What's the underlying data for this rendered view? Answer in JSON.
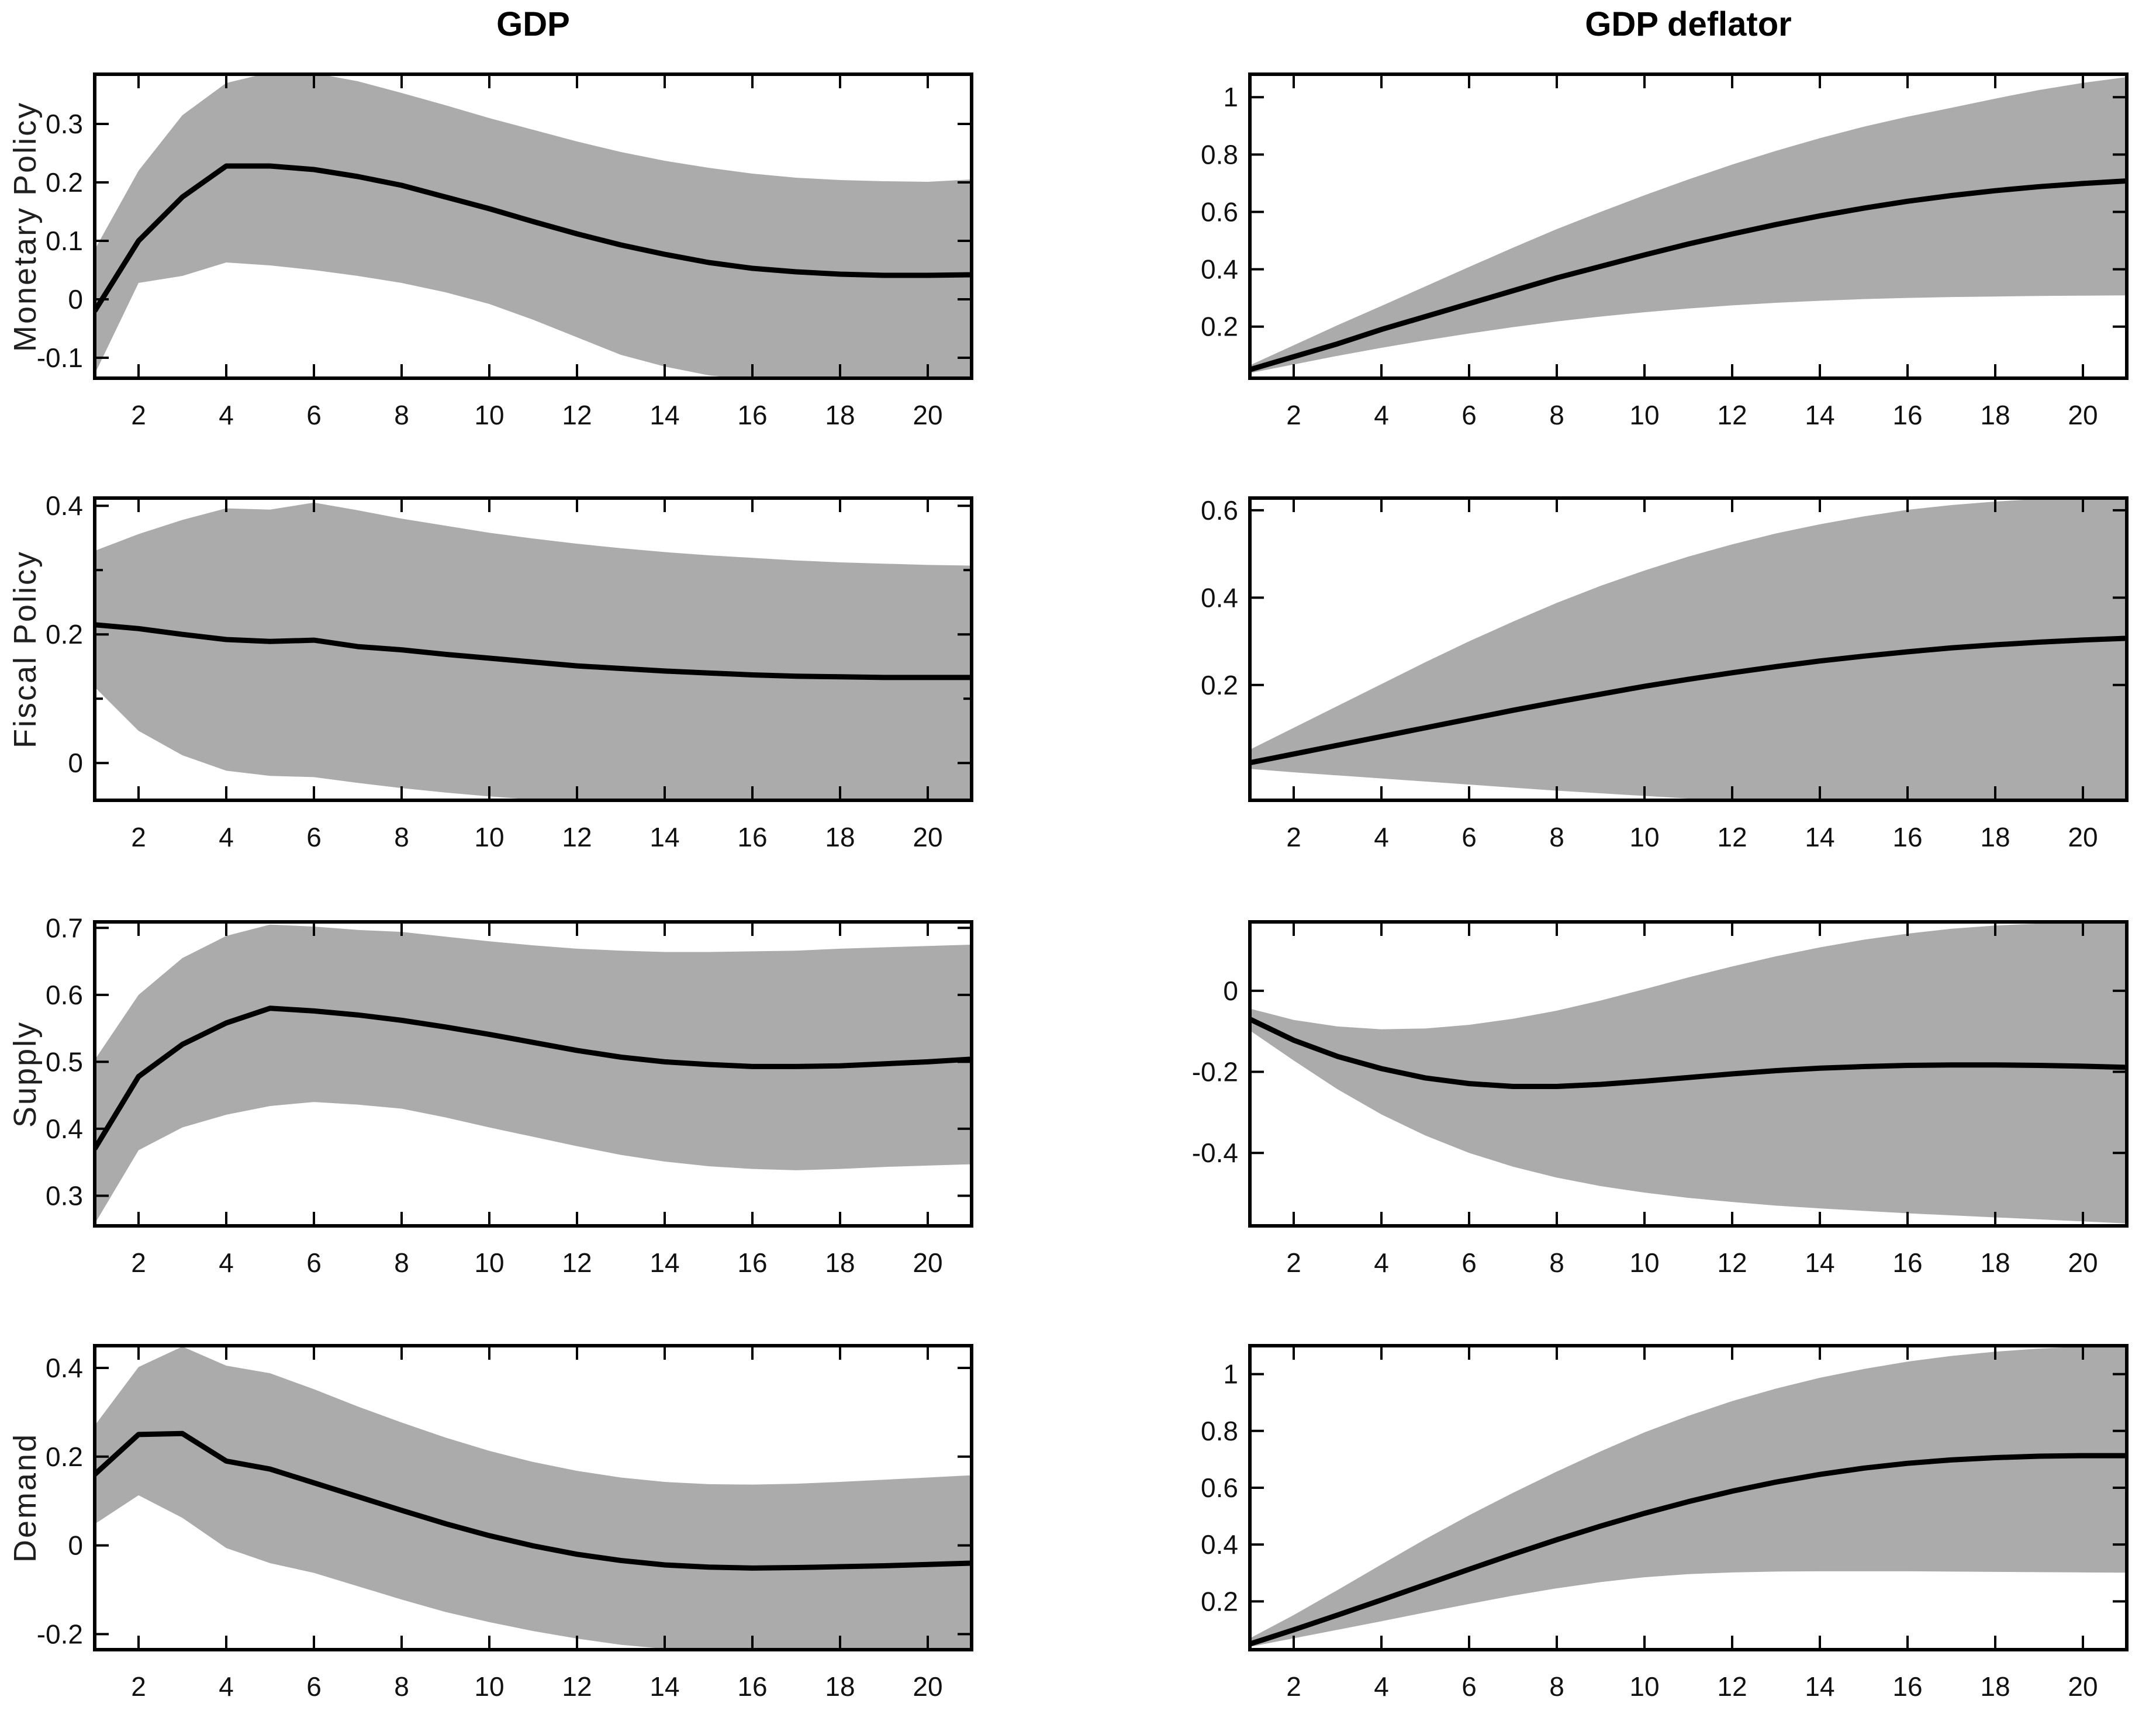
{
  "figure": {
    "columns": [
      "GDP",
      "GDP deflator"
    ],
    "rows": [
      "Monetary Policy",
      "Fiscal Policy",
      "Supply",
      "Demand"
    ],
    "colors": {
      "band": "#ababab",
      "line": "#000000",
      "frame": "#000000",
      "text": "#111111"
    }
  },
  "chart_data": [
    {
      "type": "line",
      "row": "Monetary Policy",
      "column": "GDP",
      "x": [
        1,
        2,
        3,
        4,
        5,
        6,
        7,
        8,
        9,
        10,
        11,
        12,
        13,
        14,
        15,
        16,
        17,
        18,
        19,
        20,
        21
      ],
      "xticks": [
        2,
        4,
        6,
        8,
        10,
        12,
        14,
        16,
        18,
        20
      ],
      "xlim": [
        1,
        21
      ],
      "ylim": [
        -0.135,
        0.385
      ],
      "yticks": [
        -0.1,
        0,
        0.1,
        0.2,
        0.3
      ],
      "yticks_minor": [],
      "series": [
        {
          "name": "median",
          "values": [
            -0.02,
            0.1,
            0.175,
            0.228,
            0.228,
            0.222,
            0.21,
            0.195,
            0.175,
            0.155,
            0.133,
            0.112,
            0.093,
            0.077,
            0.063,
            0.053,
            0.047,
            0.043,
            0.041,
            0.041,
            0.042
          ]
        },
        {
          "name": "band_upper",
          "values": [
            0.085,
            0.22,
            0.315,
            0.37,
            0.388,
            0.387,
            0.373,
            0.353,
            0.332,
            0.31,
            0.29,
            0.27,
            0.252,
            0.237,
            0.225,
            0.215,
            0.208,
            0.204,
            0.202,
            0.201,
            0.205
          ]
        },
        {
          "name": "band_lower",
          "values": [
            -0.128,
            0.028,
            0.04,
            0.063,
            0.058,
            0.05,
            0.04,
            0.028,
            0.012,
            -0.008,
            -0.035,
            -0.065,
            -0.095,
            -0.115,
            -0.13,
            -0.138,
            -0.142,
            -0.144,
            -0.145,
            -0.145,
            -0.144
          ]
        }
      ]
    },
    {
      "type": "line",
      "row": "Monetary Policy",
      "column": "GDP deflator",
      "x": [
        1,
        2,
        3,
        4,
        5,
        6,
        7,
        8,
        9,
        10,
        11,
        12,
        13,
        14,
        15,
        16,
        17,
        18,
        19,
        20,
        21
      ],
      "xticks": [
        2,
        4,
        6,
        8,
        10,
        12,
        14,
        16,
        18,
        20
      ],
      "xlim": [
        1,
        21
      ],
      "ylim": [
        0.02,
        1.08
      ],
      "yticks": [
        0.2,
        0.4,
        0.6,
        0.8,
        1
      ],
      "yticks_minor": [],
      "series": [
        {
          "name": "median",
          "values": [
            0.05,
            0.095,
            0.14,
            0.19,
            0.235,
            0.28,
            0.325,
            0.37,
            0.41,
            0.45,
            0.488,
            0.523,
            0.556,
            0.586,
            0.613,
            0.637,
            0.657,
            0.674,
            0.688,
            0.699,
            0.708
          ]
        },
        {
          "name": "band_upper",
          "values": [
            0.065,
            0.135,
            0.205,
            0.272,
            0.34,
            0.408,
            0.475,
            0.54,
            0.6,
            0.658,
            0.713,
            0.765,
            0.813,
            0.857,
            0.897,
            0.932,
            0.963,
            0.995,
            1.025,
            1.05,
            1.07
          ]
        },
        {
          "name": "band_lower",
          "values": [
            0.038,
            0.068,
            0.098,
            0.126,
            0.152,
            0.176,
            0.198,
            0.218,
            0.235,
            0.25,
            0.263,
            0.274,
            0.283,
            0.29,
            0.296,
            0.3,
            0.303,
            0.305,
            0.307,
            0.308,
            0.309
          ]
        }
      ]
    },
    {
      "type": "line",
      "row": "Fiscal Policy",
      "column": "GDP",
      "x": [
        1,
        2,
        3,
        4,
        5,
        6,
        7,
        8,
        9,
        10,
        11,
        12,
        13,
        14,
        15,
        16,
        17,
        18,
        19,
        20,
        21
      ],
      "xticks": [
        2,
        4,
        6,
        8,
        10,
        12,
        14,
        16,
        18,
        20
      ],
      "xlim": [
        1,
        21
      ],
      "ylim": [
        -0.058,
        0.412
      ],
      "yticks": [
        0,
        0.2,
        0.4
      ],
      "yticks_minor": [
        0.1,
        0.3
      ],
      "series": [
        {
          "name": "median",
          "values": [
            0.215,
            0.209,
            0.2,
            0.192,
            0.189,
            0.191,
            0.181,
            0.176,
            0.169,
            0.163,
            0.157,
            0.151,
            0.147,
            0.143,
            0.14,
            0.137,
            0.135,
            0.134,
            0.133,
            0.133,
            0.133
          ]
        },
        {
          "name": "band_upper",
          "values": [
            0.33,
            0.356,
            0.378,
            0.396,
            0.394,
            0.405,
            0.393,
            0.38,
            0.369,
            0.358,
            0.349,
            0.341,
            0.334,
            0.328,
            0.323,
            0.319,
            0.315,
            0.312,
            0.31,
            0.308,
            0.307
          ]
        },
        {
          "name": "band_lower",
          "values": [
            0.118,
            0.05,
            0.012,
            -0.012,
            -0.02,
            -0.022,
            -0.031,
            -0.039,
            -0.046,
            -0.052,
            -0.057,
            -0.062,
            -0.066,
            -0.068,
            -0.07,
            -0.071,
            -0.072,
            -0.072,
            -0.071,
            -0.07,
            -0.069
          ]
        }
      ]
    },
    {
      "type": "line",
      "row": "Fiscal Policy",
      "column": "GDP deflator",
      "x": [
        1,
        2,
        3,
        4,
        5,
        6,
        7,
        8,
        9,
        10,
        11,
        12,
        13,
        14,
        15,
        16,
        17,
        18,
        19,
        20,
        21
      ],
      "xticks": [
        2,
        4,
        6,
        8,
        10,
        12,
        14,
        16,
        18,
        20
      ],
      "xlim": [
        1,
        21
      ],
      "ylim": [
        -0.064,
        0.628
      ],
      "yticks": [
        0.2,
        0.4,
        0.6
      ],
      "yticks_minor": [],
      "series": [
        {
          "name": "median",
          "values": [
            0.022,
            0.042,
            0.062,
            0.082,
            0.102,
            0.122,
            0.142,
            0.161,
            0.179,
            0.197,
            0.213,
            0.228,
            0.242,
            0.255,
            0.266,
            0.276,
            0.285,
            0.292,
            0.298,
            0.303,
            0.307
          ]
        },
        {
          "name": "band_upper",
          "values": [
            0.052,
            0.102,
            0.152,
            0.202,
            0.252,
            0.3,
            0.345,
            0.388,
            0.427,
            0.462,
            0.494,
            0.522,
            0.547,
            0.568,
            0.586,
            0.601,
            0.612,
            0.62,
            0.626,
            0.63,
            0.632
          ]
        },
        {
          "name": "band_lower",
          "values": [
            0.008,
            0.0,
            -0.007,
            -0.014,
            -0.021,
            -0.028,
            -0.035,
            -0.042,
            -0.048,
            -0.054,
            -0.06,
            -0.066,
            -0.071,
            -0.076,
            -0.08,
            -0.083,
            -0.085,
            -0.086,
            -0.087,
            -0.087,
            -0.086
          ]
        }
      ]
    },
    {
      "type": "line",
      "row": "Supply",
      "column": "GDP",
      "x": [
        1,
        2,
        3,
        4,
        5,
        6,
        7,
        8,
        9,
        10,
        11,
        12,
        13,
        14,
        15,
        16,
        17,
        18,
        19,
        20,
        21
      ],
      "xticks": [
        2,
        4,
        6,
        8,
        10,
        12,
        14,
        16,
        18,
        20
      ],
      "xlim": [
        1,
        21
      ],
      "ylim": [
        0.255,
        0.709
      ],
      "yticks": [
        0.3,
        0.4,
        0.5,
        0.6,
        0.7
      ],
      "yticks_minor": [],
      "series": [
        {
          "name": "median",
          "values": [
            0.37,
            0.478,
            0.526,
            0.558,
            0.58,
            0.576,
            0.57,
            0.562,
            0.552,
            0.541,
            0.529,
            0.517,
            0.507,
            0.5,
            0.496,
            0.493,
            0.493,
            0.494,
            0.497,
            0.5,
            0.504
          ]
        },
        {
          "name": "band_upper",
          "values": [
            0.503,
            0.6,
            0.655,
            0.688,
            0.705,
            0.702,
            0.697,
            0.694,
            0.687,
            0.68,
            0.674,
            0.669,
            0.666,
            0.664,
            0.664,
            0.665,
            0.666,
            0.669,
            0.671,
            0.673,
            0.675
          ]
        },
        {
          "name": "band_lower",
          "values": [
            0.258,
            0.368,
            0.402,
            0.421,
            0.434,
            0.44,
            0.436,
            0.43,
            0.417,
            0.402,
            0.388,
            0.374,
            0.361,
            0.351,
            0.344,
            0.34,
            0.338,
            0.34,
            0.343,
            0.345,
            0.347
          ]
        }
      ]
    },
    {
      "type": "line",
      "row": "Supply",
      "column": "GDP deflator",
      "x": [
        1,
        2,
        3,
        4,
        5,
        6,
        7,
        8,
        9,
        10,
        11,
        12,
        13,
        14,
        15,
        16,
        17,
        18,
        19,
        20,
        21
      ],
      "xticks": [
        2,
        4,
        6,
        8,
        10,
        12,
        14,
        16,
        18,
        20
      ],
      "xlim": [
        1,
        21
      ],
      "ylim": [
        -0.58,
        0.17
      ],
      "yticks": [
        -0.4,
        -0.2,
        0
      ],
      "yticks_minor": [],
      "series": [
        {
          "name": "median",
          "values": [
            -0.07,
            -0.122,
            -0.162,
            -0.192,
            -0.215,
            -0.229,
            -0.236,
            -0.236,
            -0.231,
            -0.223,
            -0.214,
            -0.205,
            -0.197,
            -0.191,
            -0.187,
            -0.184,
            -0.183,
            -0.183,
            -0.184,
            -0.186,
            -0.189
          ]
        },
        {
          "name": "band_upper",
          "values": [
            -0.044,
            -0.072,
            -0.088,
            -0.095,
            -0.093,
            -0.084,
            -0.069,
            -0.049,
            -0.024,
            0.004,
            0.033,
            0.06,
            0.085,
            0.107,
            0.126,
            0.141,
            0.153,
            0.161,
            0.166,
            0.169,
            0.171
          ]
        },
        {
          "name": "band_lower",
          "values": [
            -0.098,
            -0.172,
            -0.243,
            -0.305,
            -0.357,
            -0.4,
            -0.434,
            -0.461,
            -0.482,
            -0.498,
            -0.511,
            -0.521,
            -0.53,
            -0.537,
            -0.543,
            -0.549,
            -0.554,
            -0.559,
            -0.564,
            -0.569,
            -0.574
          ]
        }
      ]
    },
    {
      "type": "line",
      "row": "Demand",
      "column": "GDP",
      "x": [
        1,
        2,
        3,
        4,
        5,
        6,
        7,
        8,
        9,
        10,
        11,
        12,
        13,
        14,
        15,
        16,
        17,
        18,
        19,
        20,
        21
      ],
      "xticks": [
        2,
        4,
        6,
        8,
        10,
        12,
        14,
        16,
        18,
        20
      ],
      "xlim": [
        1,
        21
      ],
      "ylim": [
        -0.235,
        0.45
      ],
      "yticks": [
        -0.2,
        0,
        0.2,
        0.4
      ],
      "yticks_minor": [],
      "series": [
        {
          "name": "median",
          "values": [
            0.16,
            0.25,
            0.252,
            0.19,
            0.172,
            0.141,
            0.11,
            0.079,
            0.049,
            0.022,
            -0.001,
            -0.02,
            -0.034,
            -0.044,
            -0.049,
            -0.051,
            -0.05,
            -0.048,
            -0.046,
            -0.043,
            -0.04
          ]
        },
        {
          "name": "band_upper",
          "values": [
            0.27,
            0.402,
            0.448,
            0.405,
            0.388,
            0.352,
            0.313,
            0.277,
            0.243,
            0.213,
            0.188,
            0.168,
            0.153,
            0.143,
            0.138,
            0.137,
            0.139,
            0.143,
            0.148,
            0.153,
            0.158
          ]
        },
        {
          "name": "band_lower",
          "values": [
            0.048,
            0.113,
            0.062,
            -0.006,
            -0.04,
            -0.062,
            -0.092,
            -0.122,
            -0.15,
            -0.173,
            -0.193,
            -0.21,
            -0.224,
            -0.233,
            -0.238,
            -0.24,
            -0.24,
            -0.239,
            -0.238,
            -0.237,
            -0.236
          ]
        }
      ]
    },
    {
      "type": "line",
      "row": "Demand",
      "column": "GDP deflator",
      "x": [
        1,
        2,
        3,
        4,
        5,
        6,
        7,
        8,
        9,
        10,
        11,
        12,
        13,
        14,
        15,
        16,
        17,
        18,
        19,
        20,
        21
      ],
      "xticks": [
        2,
        4,
        6,
        8,
        10,
        12,
        14,
        16,
        18,
        20
      ],
      "xlim": [
        1,
        21
      ],
      "ylim": [
        0.03,
        1.1
      ],
      "yticks": [
        0.2,
        0.4,
        0.6,
        0.8,
        1
      ],
      "yticks_minor": [],
      "series": [
        {
          "name": "median",
          "values": [
            0.05,
            0.1,
            0.152,
            0.205,
            0.259,
            0.313,
            0.366,
            0.417,
            0.465,
            0.51,
            0.551,
            0.588,
            0.62,
            0.647,
            0.669,
            0.686,
            0.698,
            0.706,
            0.711,
            0.713,
            0.713
          ]
        },
        {
          "name": "band_upper",
          "values": [
            0.07,
            0.152,
            0.24,
            0.33,
            0.419,
            0.503,
            0.582,
            0.657,
            0.728,
            0.795,
            0.853,
            0.905,
            0.949,
            0.987,
            1.018,
            1.044,
            1.064,
            1.079,
            1.09,
            1.097,
            1.101
          ]
        },
        {
          "name": "band_lower",
          "values": [
            0.04,
            0.07,
            0.1,
            0.13,
            0.161,
            0.191,
            0.22,
            0.246,
            0.268,
            0.285,
            0.296,
            0.302,
            0.305,
            0.306,
            0.306,
            0.306,
            0.305,
            0.304,
            0.303,
            0.302,
            0.301
          ]
        }
      ]
    }
  ]
}
